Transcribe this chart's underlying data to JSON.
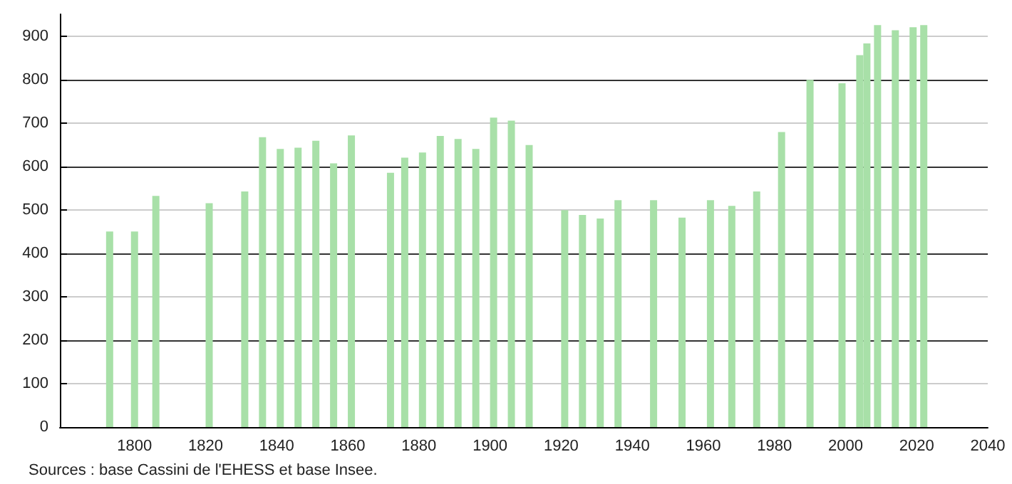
{
  "chart_data": {
    "type": "bar",
    "x": [
      1793,
      1800,
      1806,
      1821,
      1831,
      1836,
      1841,
      1846,
      1851,
      1856,
      1861,
      1872,
      1876,
      1881,
      1886,
      1891,
      1896,
      1901,
      1906,
      1911,
      1921,
      1926,
      1931,
      1936,
      1946,
      1954,
      1962,
      1968,
      1975,
      1982,
      1990,
      1999,
      2004,
      2006,
      2009,
      2014,
      2019,
      2022
    ],
    "values": [
      450,
      450,
      532,
      515,
      542,
      667,
      640,
      643,
      659,
      607,
      671,
      585,
      620,
      632,
      670,
      663,
      640,
      712,
      705,
      649,
      499,
      488,
      480,
      522,
      522,
      482,
      522,
      509,
      542,
      679,
      799,
      791,
      856,
      883,
      925,
      913,
      920,
      925
    ],
    "color": "#a8e0a8",
    "xlim": [
      1779,
      2040
    ],
    "xticks": [
      1800,
      1820,
      1840,
      1860,
      1880,
      1900,
      1920,
      1940,
      1960,
      1980,
      2000,
      2020,
      2040
    ],
    "ylim": [
      0,
      950
    ],
    "yticks": [
      0,
      100,
      200,
      300,
      400,
      500,
      600,
      700,
      800,
      900
    ],
    "grid": "y",
    "annotations": [
      "Sources : base Cassini de l'EHESS et base Insee."
    ]
  }
}
